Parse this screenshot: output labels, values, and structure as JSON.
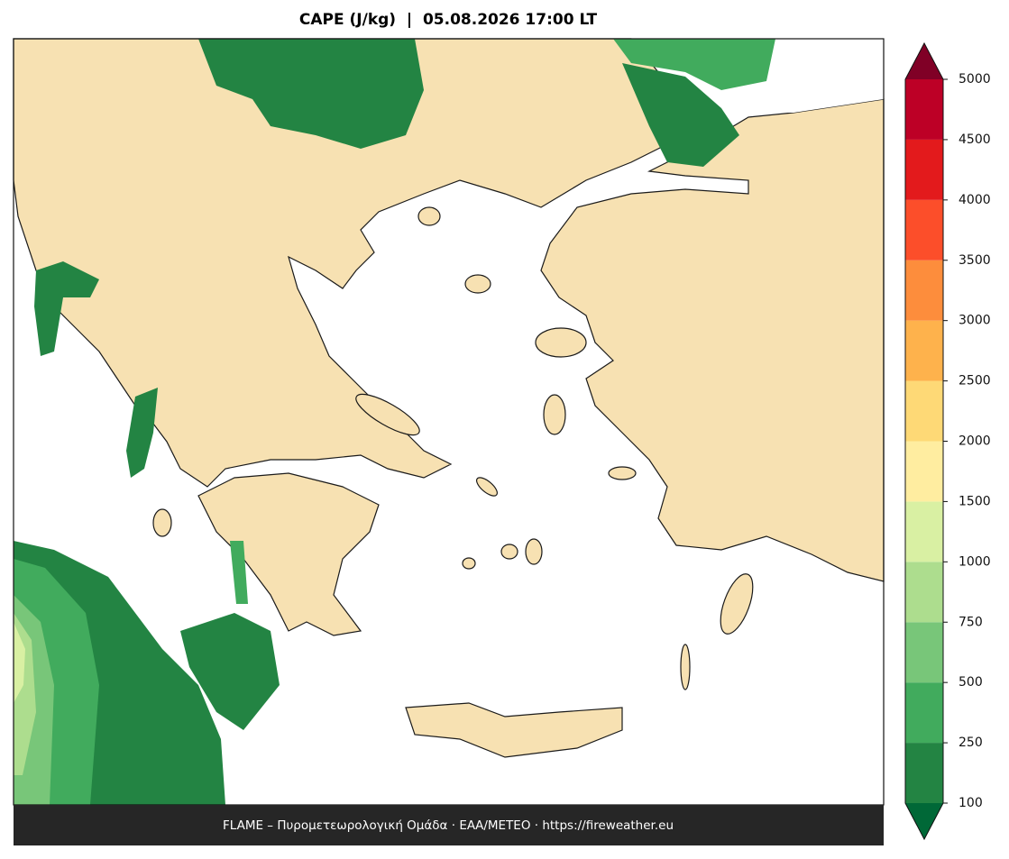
{
  "title": "CAPE (J/kg)  |  05.08.2026 17:00 LT",
  "footer": "FLAME – Πυρομετεωρολογική Ομάδα · ΕΑΑ/METEO · https://fireweather.eu",
  "colorbar": {
    "levels": [
      100,
      250,
      500,
      750,
      1000,
      1500,
      2000,
      2500,
      3000,
      3500,
      4000,
      4500,
      5000
    ],
    "colors": [
      "#238443",
      "#41ab5d",
      "#78c679",
      "#addd8e",
      "#d9f0a3",
      "#ffeda0",
      "#fed976",
      "#feb24c",
      "#fd8d3c",
      "#fc4e2a",
      "#e31a1c",
      "#bd0026"
    ],
    "under_color": "#006837",
    "over_color": "#800026"
  }
}
